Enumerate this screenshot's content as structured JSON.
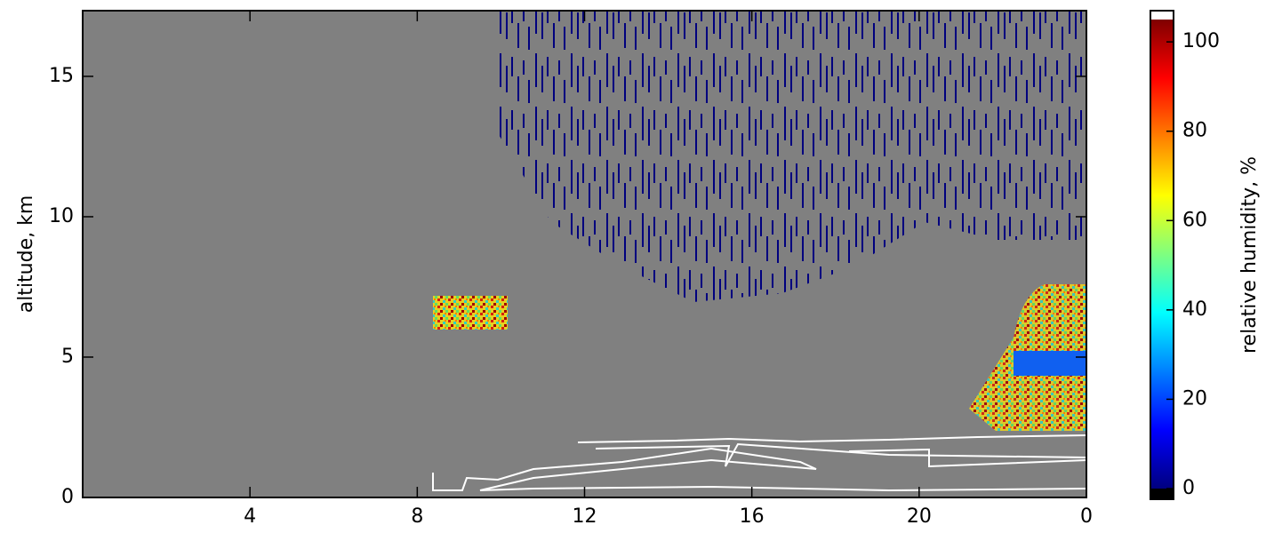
{
  "chart_data": {
    "type": "heatmap",
    "xlim": [
      0,
      24
    ],
    "xticks": [
      4,
      8,
      12,
      16,
      20,
      {
        "value": 24,
        "label": "0"
      }
    ],
    "ylabel": "altitude, km",
    "ylim": [
      0,
      17.34
    ],
    "yticks": [
      0,
      5,
      10,
      15
    ],
    "colorbar": {
      "label": "relative humidity, %",
      "clim": [
        0,
        105
      ],
      "ticks": [
        0,
        20,
        40,
        60,
        80,
        100
      ],
      "colormap": [
        "#00007f",
        "#0000ff",
        "#007fff",
        "#00ffff",
        "#7fff7f",
        "#ffff00",
        "#ff7f00",
        "#ff0000",
        "#7f0000"
      ],
      "under_color": "#000000",
      "over_color": "#ffffff"
    },
    "background_color": "#808080"
  }
}
